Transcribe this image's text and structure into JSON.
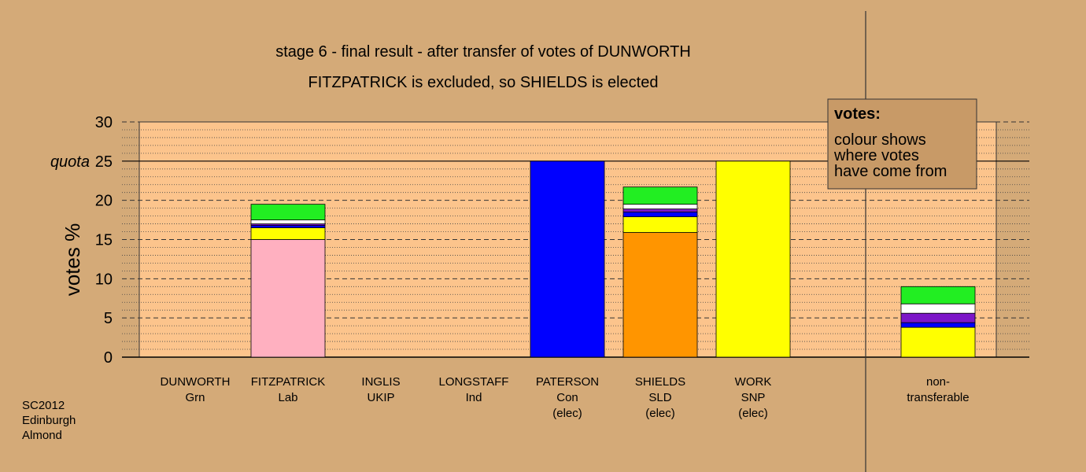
{
  "title_line1": "stage 6 - final result - after transfer of votes of DUNWORTH",
  "title_line2": "FITZPATRICK is excluded, so SHIELDS is elected",
  "side_note": [
    "SC2012",
    "Edinburgh",
    "Almond"
  ],
  "legend": {
    "heading": "votes:",
    "lines": [
      "colour shows",
      "where votes",
      "have come from"
    ]
  },
  "colors": {
    "background": "#d4aa78",
    "plot_area": "#fcc48c",
    "Grn": "#22ee22",
    "Lab": "#ffb0c0",
    "UKIP": "#7c16c8",
    "Ind": "#ffffff",
    "Con": "#0000ff",
    "SLD": "#ff9500",
    "SNP": "#ffff00"
  },
  "chart_data": {
    "type": "bar",
    "stacked": true,
    "title": "stage 6 - final result - after transfer of votes of DUNWORTH",
    "subtitle": "FITZPATRICK is excluded, so SHIELDS is elected",
    "ylabel": "votes %",
    "ylim": [
      0,
      30
    ],
    "yticks": [
      "0",
      "5",
      "10",
      "15",
      "20",
      "25",
      "30"
    ],
    "quota": 25,
    "quota_label": "quota",
    "grid": true,
    "legend_placement": "top-right",
    "categories": [
      {
        "name": "DUNWORTH",
        "party": "Grn",
        "status": ""
      },
      {
        "name": "FITZPATRICK",
        "party": "Lab",
        "status": ""
      },
      {
        "name": "INGLIS",
        "party": "UKIP",
        "status": ""
      },
      {
        "name": "LONGSTAFF",
        "party": "Ind",
        "status": ""
      },
      {
        "name": "PATERSON",
        "party": "Con",
        "status": "(elec)"
      },
      {
        "name": "SHIELDS",
        "party": "SLD",
        "status": "(elec)"
      },
      {
        "name": "WORK",
        "party": "SNP",
        "status": "(elec)"
      },
      {
        "name": "non-",
        "party": "transferable",
        "status": ""
      }
    ],
    "stacks": [
      [],
      [
        {
          "from": "Lab",
          "value": 15.0
        },
        {
          "from": "SNP",
          "value": 1.5
        },
        {
          "from": "Con",
          "value": 0.3
        },
        {
          "from": "UKIP",
          "value": 0.2
        },
        {
          "from": "Ind",
          "value": 0.5
        },
        {
          "from": "Grn",
          "value": 2.0
        }
      ],
      [],
      [],
      [
        {
          "from": "Con",
          "value": 25.0
        }
      ],
      [
        {
          "from": "SLD",
          "value": 15.9
        },
        {
          "from": "SNP",
          "value": 2.0
        },
        {
          "from": "Con",
          "value": 0.6
        },
        {
          "from": "UKIP",
          "value": 0.4
        },
        {
          "from": "Ind",
          "value": 0.6
        },
        {
          "from": "Grn",
          "value": 2.2
        }
      ],
      [
        {
          "from": "SNP",
          "value": 25.0
        }
      ],
      [
        {
          "from": "SNP",
          "value": 3.8
        },
        {
          "from": "Con",
          "value": 0.6
        },
        {
          "from": "UKIP",
          "value": 1.2
        },
        {
          "from": "Ind",
          "value": 1.2
        },
        {
          "from": "Grn",
          "value": 2.2
        }
      ]
    ]
  }
}
